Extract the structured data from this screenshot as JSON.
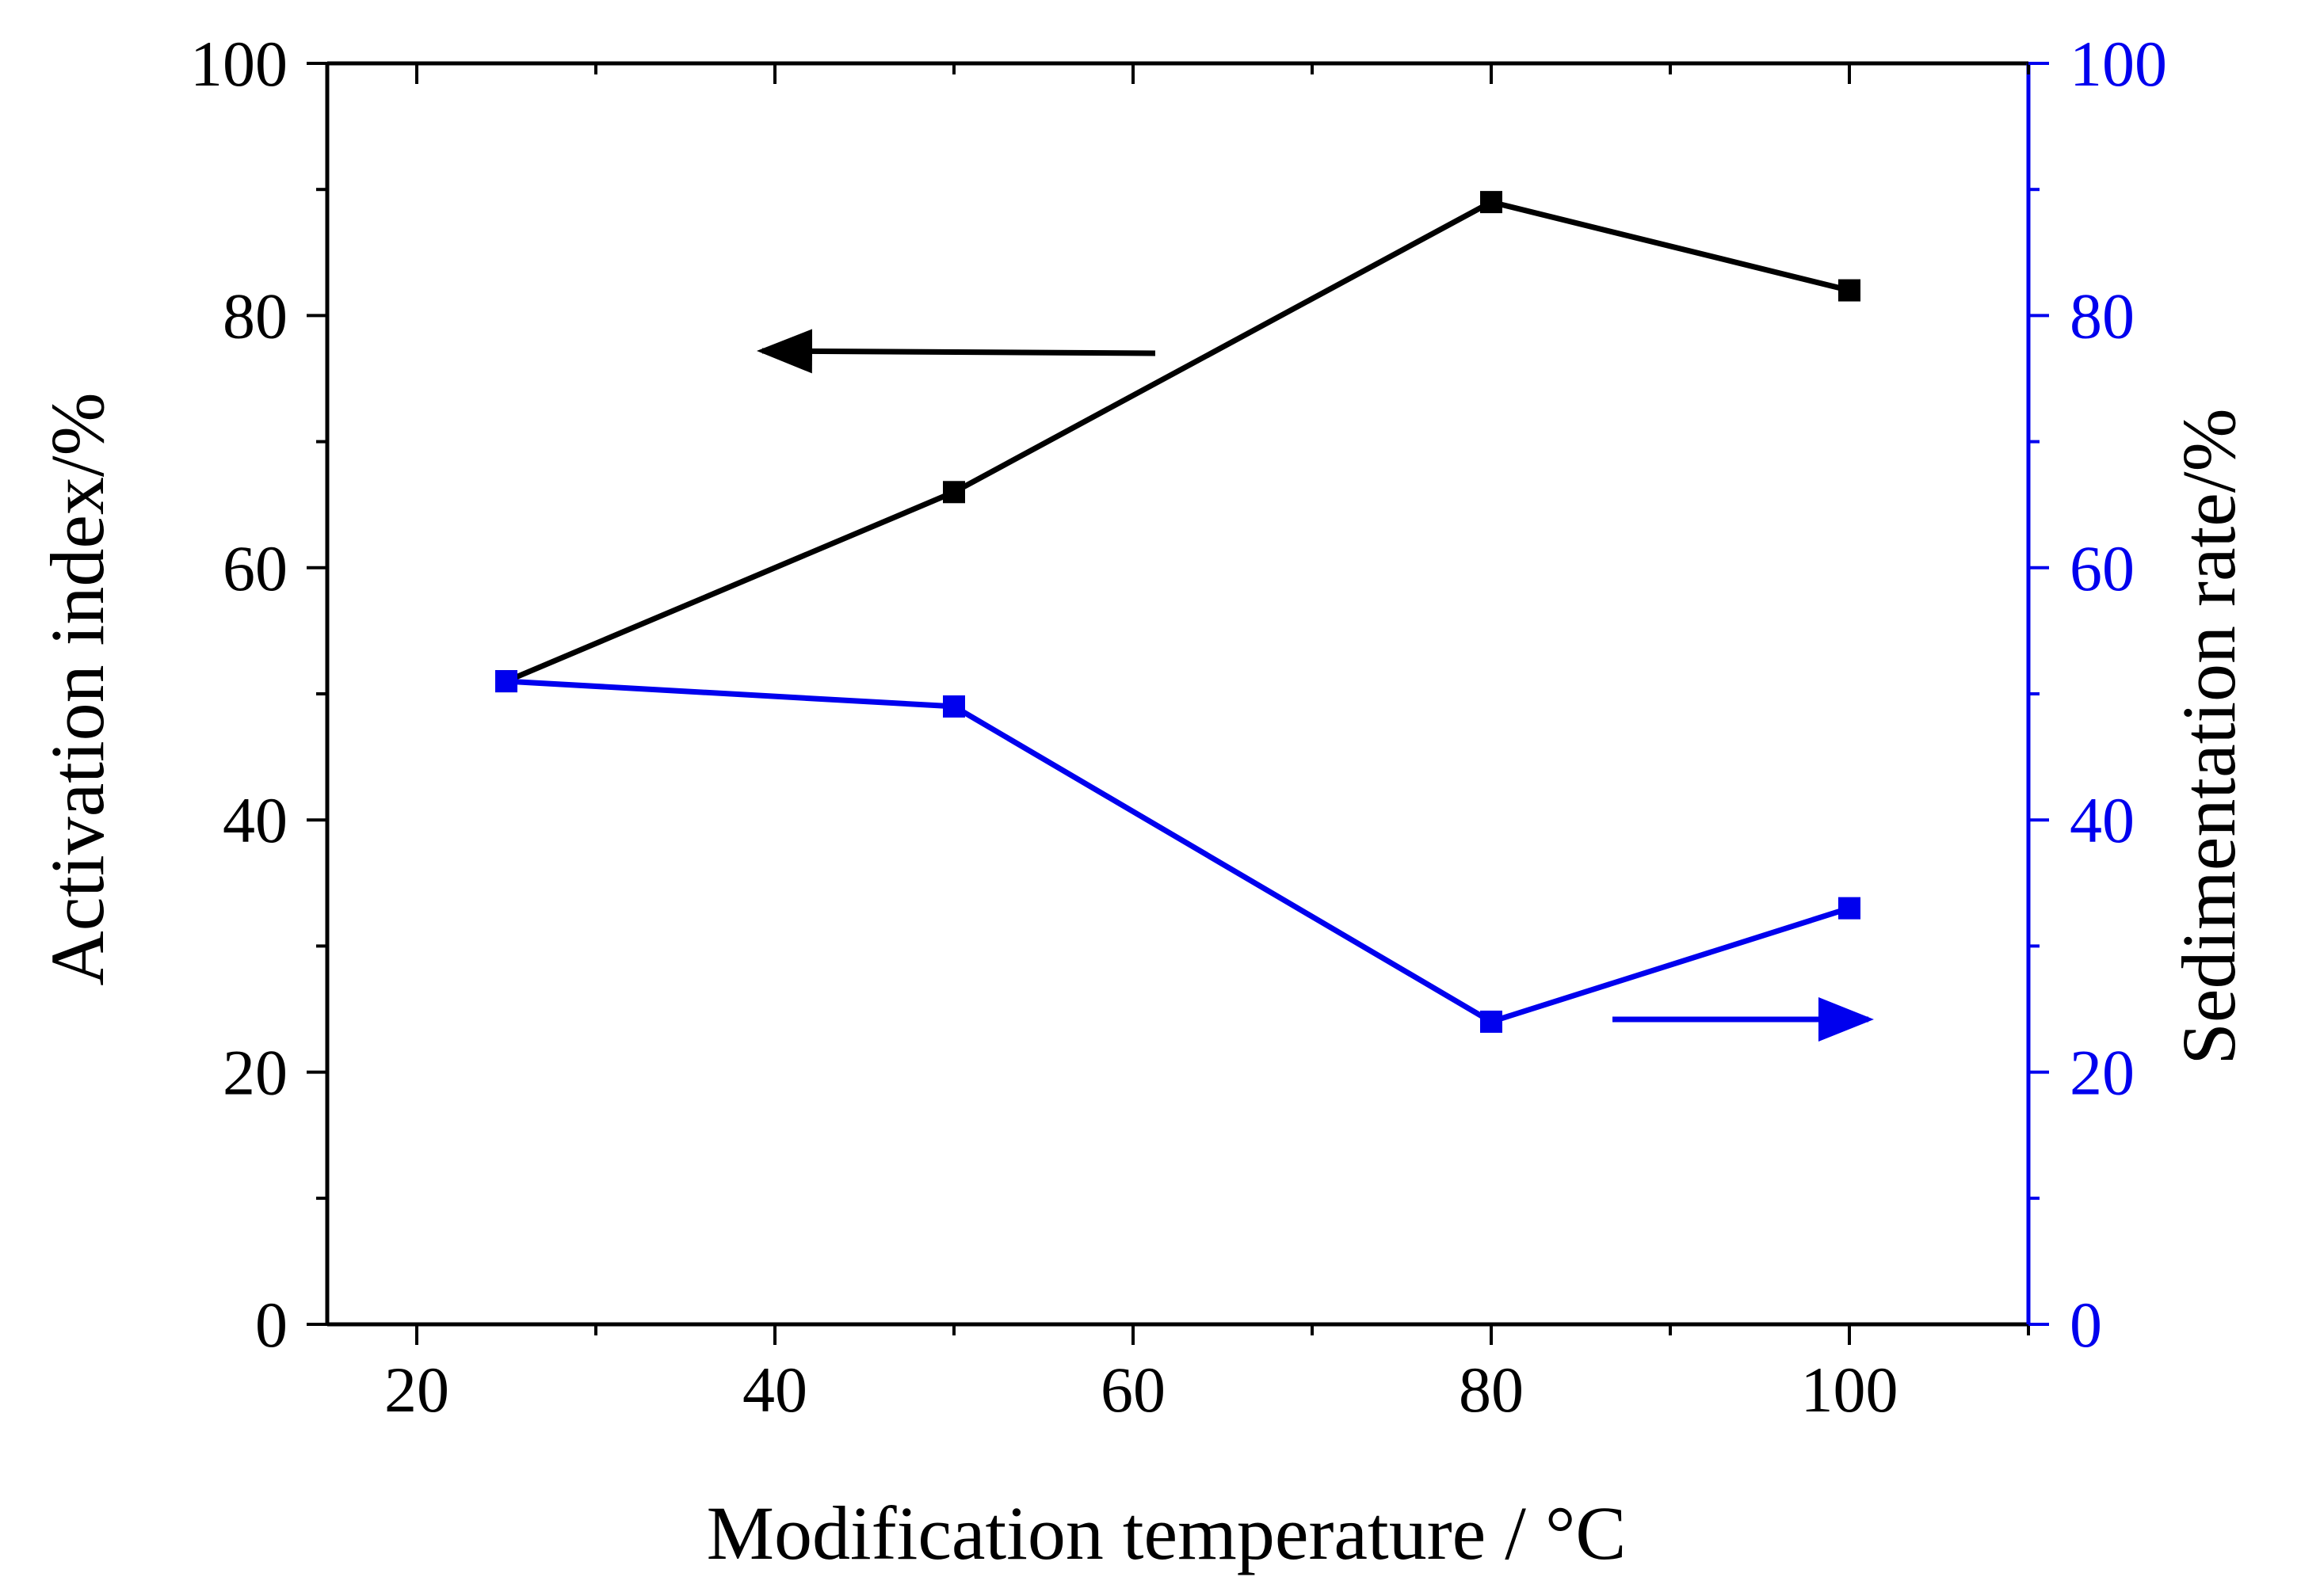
{
  "chart_data": {
    "type": "line",
    "title": "",
    "xlabel": "Modification temperature / °C",
    "ylabel_left": "Activation index/%",
    "ylabel_right": "Sedimentation rate/%",
    "xlim": [
      15,
      110
    ],
    "ylim_left": [
      0,
      100
    ],
    "ylim_right": [
      0,
      100
    ],
    "x_ticks": [
      20,
      40,
      60,
      80,
      100
    ],
    "x_tick_labels": [
      "20",
      "40",
      "60",
      "80",
      "100"
    ],
    "y_left_ticks": [
      0,
      20,
      40,
      60,
      80,
      100
    ],
    "y_left_tick_labels": [
      "0",
      "20",
      "40",
      "60",
      "80",
      "100"
    ],
    "y_right_ticks": [
      0,
      20,
      40,
      60,
      80,
      100
    ],
    "y_right_tick_labels": [
      "0",
      "20",
      "40",
      "60",
      "80",
      "100"
    ],
    "grid": false,
    "series": [
      {
        "name": "Activation index",
        "axis": "left",
        "color": "#000000",
        "marker": "square",
        "x": [
          25,
          50,
          80,
          100
        ],
        "values": [
          51,
          66,
          89,
          82
        ]
      },
      {
        "name": "Sedimentation rate",
        "axis": "right",
        "color": "#0000ee",
        "marker": "square",
        "x": [
          25,
          50,
          80,
          100
        ],
        "values": [
          51,
          49,
          24,
          33
        ]
      }
    ],
    "annotations": [
      {
        "type": "arrow",
        "points_to": "left axis",
        "series": "Activation index",
        "color": "#000000"
      },
      {
        "type": "arrow",
        "points_to": "right axis",
        "series": "Sedimentation rate",
        "color": "#0000ee"
      }
    ]
  }
}
